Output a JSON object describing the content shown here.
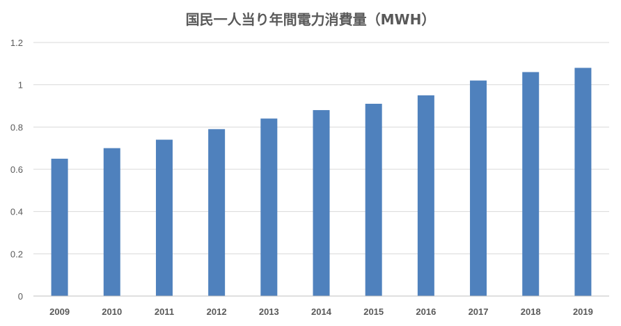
{
  "chart_data": {
    "type": "bar",
    "title": "国民一人当り年間電力消費量（MWH）",
    "xlabel": "",
    "ylabel": "",
    "categories": [
      "2009",
      "2010",
      "2011",
      "2012",
      "2013",
      "2014",
      "2015",
      "2016",
      "2017",
      "2018",
      "2019"
    ],
    "values": [
      0.65,
      0.7,
      0.74,
      0.79,
      0.84,
      0.88,
      0.91,
      0.95,
      1.02,
      1.06,
      1.08
    ],
    "ylim": [
      0,
      1.2
    ],
    "yticks": [
      "0",
      "0.2",
      "0.4",
      "0.6",
      "0.8",
      "1",
      "1.2"
    ],
    "grid": true,
    "legend": "none",
    "bar_color": "#4f81bd",
    "grid_color": "#d9d9d9"
  }
}
